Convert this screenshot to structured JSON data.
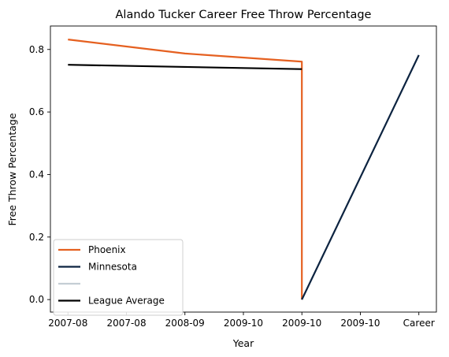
{
  "chart_data": {
    "type": "line",
    "title": "Alando Tucker Career Free Throw Percentage",
    "xlabel": "Year",
    "ylabel": "Free Throw Percentage",
    "x_tick_labels": [
      "2007-08",
      "2007-08",
      "2008-09",
      "2009-10",
      "2009-10",
      "2009-10",
      "Career"
    ],
    "y_ticks": [
      0.0,
      0.2,
      0.4,
      0.6,
      0.8
    ],
    "y_tick_labels": [
      "0.0",
      "0.2",
      "0.4",
      "0.6",
      "0.8"
    ],
    "ylim": [
      -0.04,
      0.875
    ],
    "xlim": [
      -0.3,
      6.3
    ],
    "grid": false,
    "legend_position": "lower-left",
    "series": [
      {
        "name": "Phoenix",
        "color": "#E56020",
        "points": [
          [
            0,
            0.832
          ],
          [
            2,
            0.787
          ],
          [
            4,
            0.761
          ],
          [
            4,
            0.0
          ]
        ]
      },
      {
        "name": "Minnesota",
        "color": "#0C2340",
        "points": [
          [
            4,
            0.0
          ],
          [
            6,
            0.782
          ]
        ]
      },
      {
        "name": "",
        "color": "#C4CED4",
        "points": []
      },
      {
        "name": "League Average",
        "color": "#000000",
        "points": [
          [
            0,
            0.751
          ],
          [
            4,
            0.737
          ]
        ]
      }
    ]
  }
}
